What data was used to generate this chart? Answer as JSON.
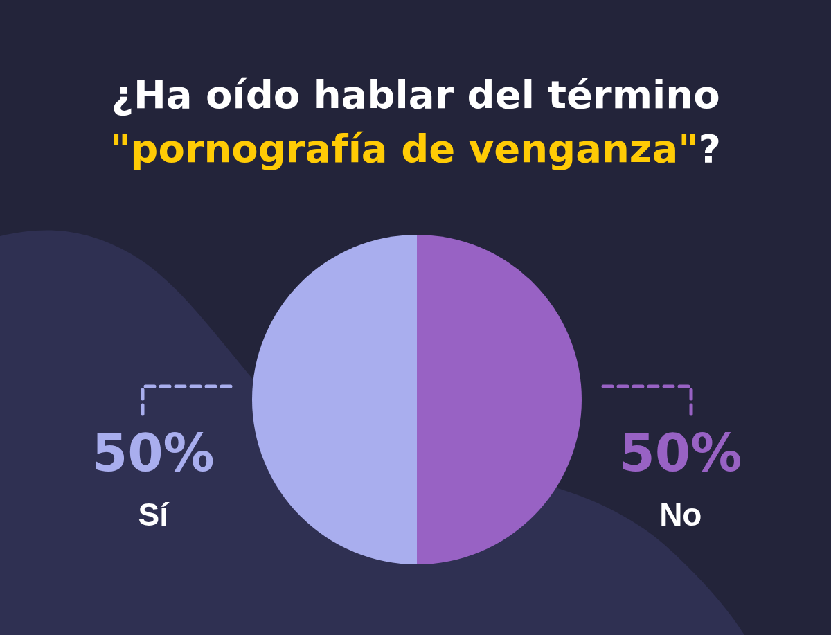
{
  "chart_data": {
    "type": "pie",
    "title": "¿Ha oído hablar del término \"pornografía de venganza\"?",
    "categories": [
      "Sí",
      "No"
    ],
    "values": [
      50,
      50
    ],
    "colors": [
      "#a9aeee",
      "#9862c4"
    ],
    "value_labels": [
      "50%",
      "50%"
    ]
  }
}
